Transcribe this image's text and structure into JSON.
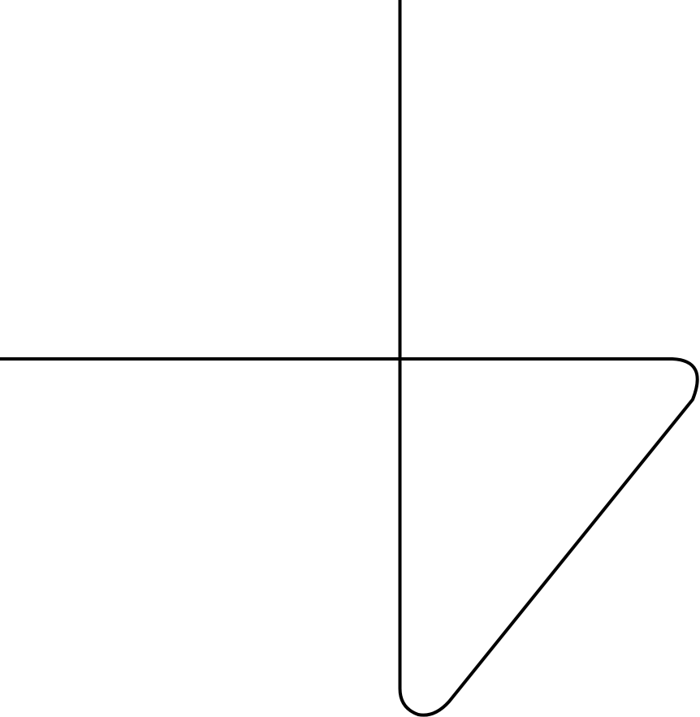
{
  "diagram": {
    "elements": [
      {
        "name": "vertical-axis-line",
        "kind": "line"
      },
      {
        "name": "horizontal-axis-line",
        "kind": "line"
      },
      {
        "name": "rounded-triangle-outline",
        "kind": "rounded-triangle"
      }
    ],
    "stroke_color": "#000000",
    "background_color": "#ffffff"
  }
}
